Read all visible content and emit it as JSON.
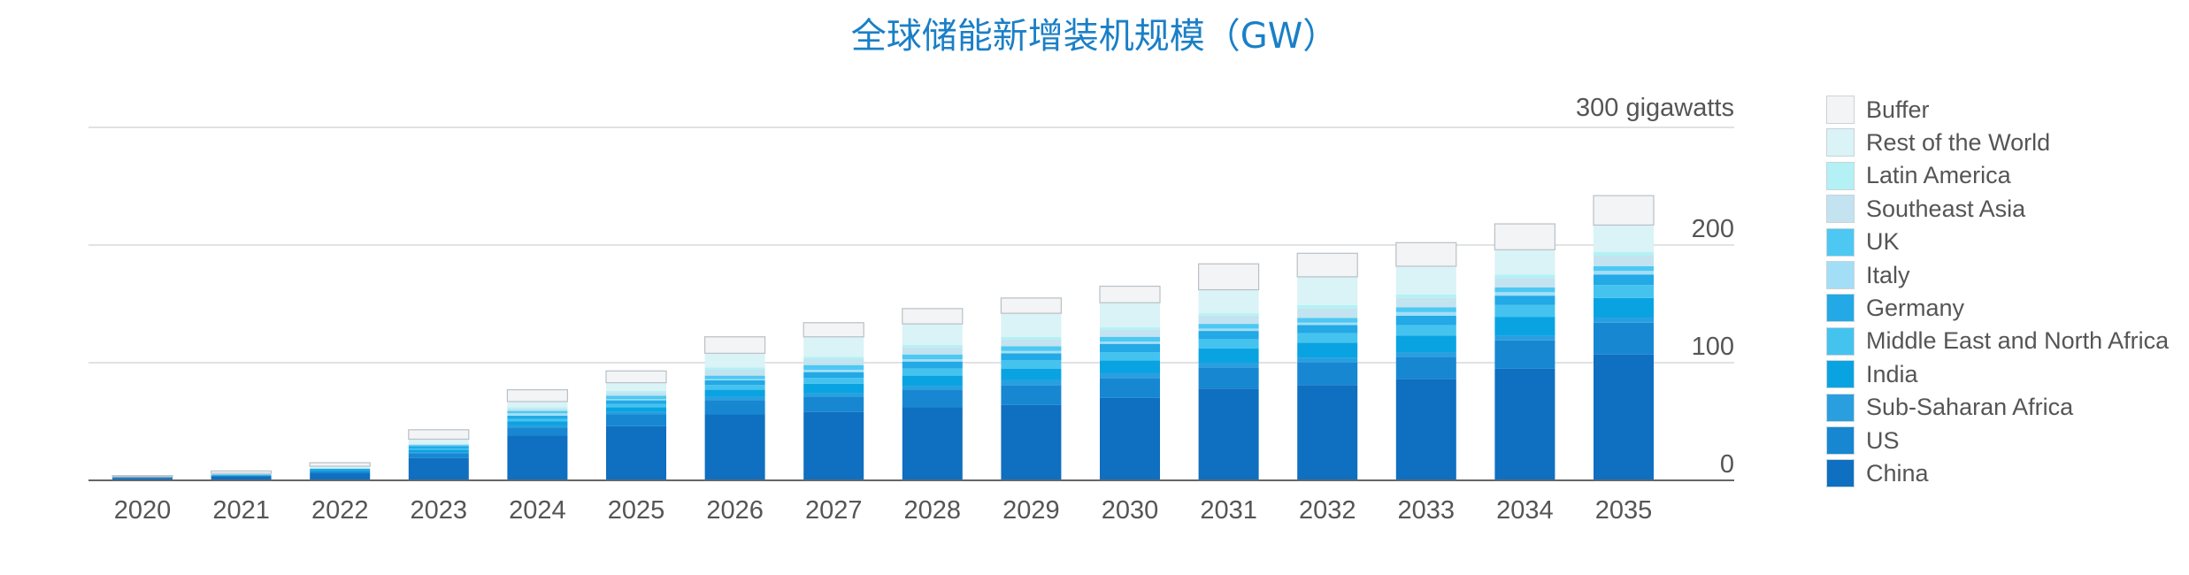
{
  "chart_data": {
    "type": "bar",
    "stacked": true,
    "title": "全球储能新增装机规模（GW）",
    "unit_label": "300 gigawatts",
    "categories": [
      "2020",
      "2021",
      "2022",
      "2023",
      "2024",
      "2025",
      "2026",
      "2027",
      "2028",
      "2029",
      "2030",
      "2031",
      "2032",
      "2033",
      "2034",
      "2035"
    ],
    "ylim": [
      0,
      300
    ],
    "y_ticks": [
      0,
      100,
      200
    ],
    "grid": true,
    "legend_position": "right",
    "series": [
      {
        "name": "China",
        "color": "#0f6fc0",
        "values": [
          2,
          3,
          6,
          19,
          38,
          46,
          56,
          58,
          62,
          64,
          70,
          78,
          81,
          86,
          95,
          107
        ]
      },
      {
        "name": "US",
        "color": "#1787d2",
        "values": [
          1,
          1,
          2,
          4,
          7,
          10,
          12,
          13,
          15,
          17,
          17,
          18,
          19,
          19,
          24,
          27
        ]
      },
      {
        "name": "Sub-Saharan Africa",
        "color": "#2a9fdf",
        "values": [
          0,
          0,
          0,
          1,
          2,
          2,
          3,
          3,
          3,
          4,
          4,
          4,
          4,
          4,
          4,
          4
        ]
      },
      {
        "name": "India",
        "color": "#0aa3e2",
        "values": [
          0,
          0,
          1,
          2,
          3,
          4,
          6,
          8,
          9,
          10,
          11,
          12,
          13,
          14,
          16,
          17
        ]
      },
      {
        "name": "Middle East and North Africa",
        "color": "#45c3ef",
        "values": [
          0,
          0,
          0,
          1,
          2,
          3,
          4,
          5,
          6,
          7,
          7,
          8,
          8,
          9,
          10,
          11
        ]
      },
      {
        "name": "Germany",
        "color": "#22a9e6",
        "values": [
          0,
          1,
          1,
          2,
          3,
          3,
          4,
          5,
          6,
          6,
          7,
          7,
          7,
          8,
          8,
          9
        ]
      },
      {
        "name": "Italy",
        "color": "#a2def6",
        "values": [
          0,
          0,
          0,
          0,
          2,
          1,
          1,
          2,
          2,
          2,
          2,
          2,
          2,
          3,
          3,
          3
        ]
      },
      {
        "name": "UK",
        "color": "#4cc8f2",
        "values": [
          0,
          0,
          0,
          1,
          2,
          3,
          3,
          4,
          4,
          4,
          4,
          4,
          4,
          4,
          4,
          4
        ]
      },
      {
        "name": "Southeast Asia",
        "color": "#c2e3ef",
        "values": [
          0,
          0,
          0,
          1,
          2,
          3,
          5,
          5,
          6,
          6,
          6,
          7,
          8,
          8,
          8,
          9
        ]
      },
      {
        "name": "Latin America",
        "color": "#b3f1f4",
        "values": [
          0,
          0,
          0,
          0,
          1,
          1,
          2,
          2,
          2,
          2,
          2,
          2,
          3,
          3,
          3,
          3
        ]
      },
      {
        "name": "Rest of the World",
        "color": "#d9f3f7",
        "values": [
          0,
          1,
          2,
          4,
          5,
          7,
          12,
          17,
          18,
          20,
          21,
          20,
          24,
          24,
          21,
          23
        ]
      },
      {
        "name": "Buffer",
        "color": "#f3f4f5",
        "values": [
          1,
          2,
          3,
          8,
          10,
          10,
          14,
          12,
          13,
          13,
          14,
          22,
          20,
          20,
          22,
          25
        ]
      }
    ]
  }
}
